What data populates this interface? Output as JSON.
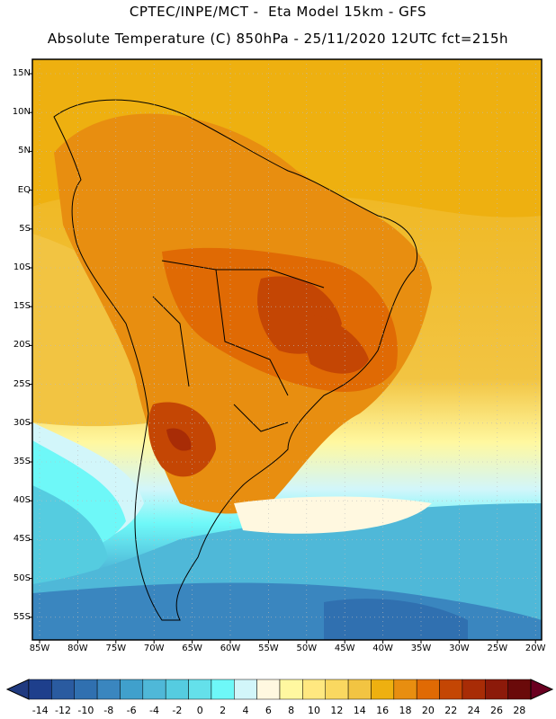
{
  "header": {
    "line1": "CPTEC/INPE/MCT -  Eta Model 15km - GFS",
    "line2": "Absolute Temperature (C) 850hPa - 25/11/2020 12UTC fct=215h"
  },
  "axes": {
    "lat_labels": [
      "15N",
      "10N",
      "5N",
      "EQ",
      "5S",
      "10S",
      "15S",
      "20S",
      "25S",
      "30S",
      "35S",
      "40S",
      "45S",
      "50S",
      "55S"
    ],
    "lon_labels": [
      "85W",
      "80W",
      "75W",
      "70W",
      "65W",
      "60W",
      "55W",
      "50W",
      "45W",
      "40W",
      "35W",
      "30W",
      "25W",
      "20W"
    ]
  },
  "colorbar": {
    "labels": [
      "-14",
      "-12",
      "-10",
      "-8",
      "-6",
      "-4",
      "-2",
      "0",
      "2",
      "4",
      "6",
      "8",
      "10",
      "12",
      "14",
      "16",
      "18",
      "20",
      "22",
      "24",
      "26",
      "28"
    ],
    "colors": [
      "#1e3f8c",
      "#2a5ba0",
      "#3070b0",
      "#3a86bf",
      "#40a0cc",
      "#4fb8d8",
      "#55cce0",
      "#64e0ea",
      "#6ef8f8",
      "#d2f6fa",
      "#fff8e0",
      "#fff8a0",
      "#ffe880",
      "#fad860",
      "#f2c442",
      "#eeb010",
      "#e88e10",
      "#e06a04",
      "#c44604",
      "#a82c06",
      "#8c1a0a",
      "#6a0a0a"
    ],
    "under_color": "#203a80",
    "over_color": "#6a0020"
  }
}
